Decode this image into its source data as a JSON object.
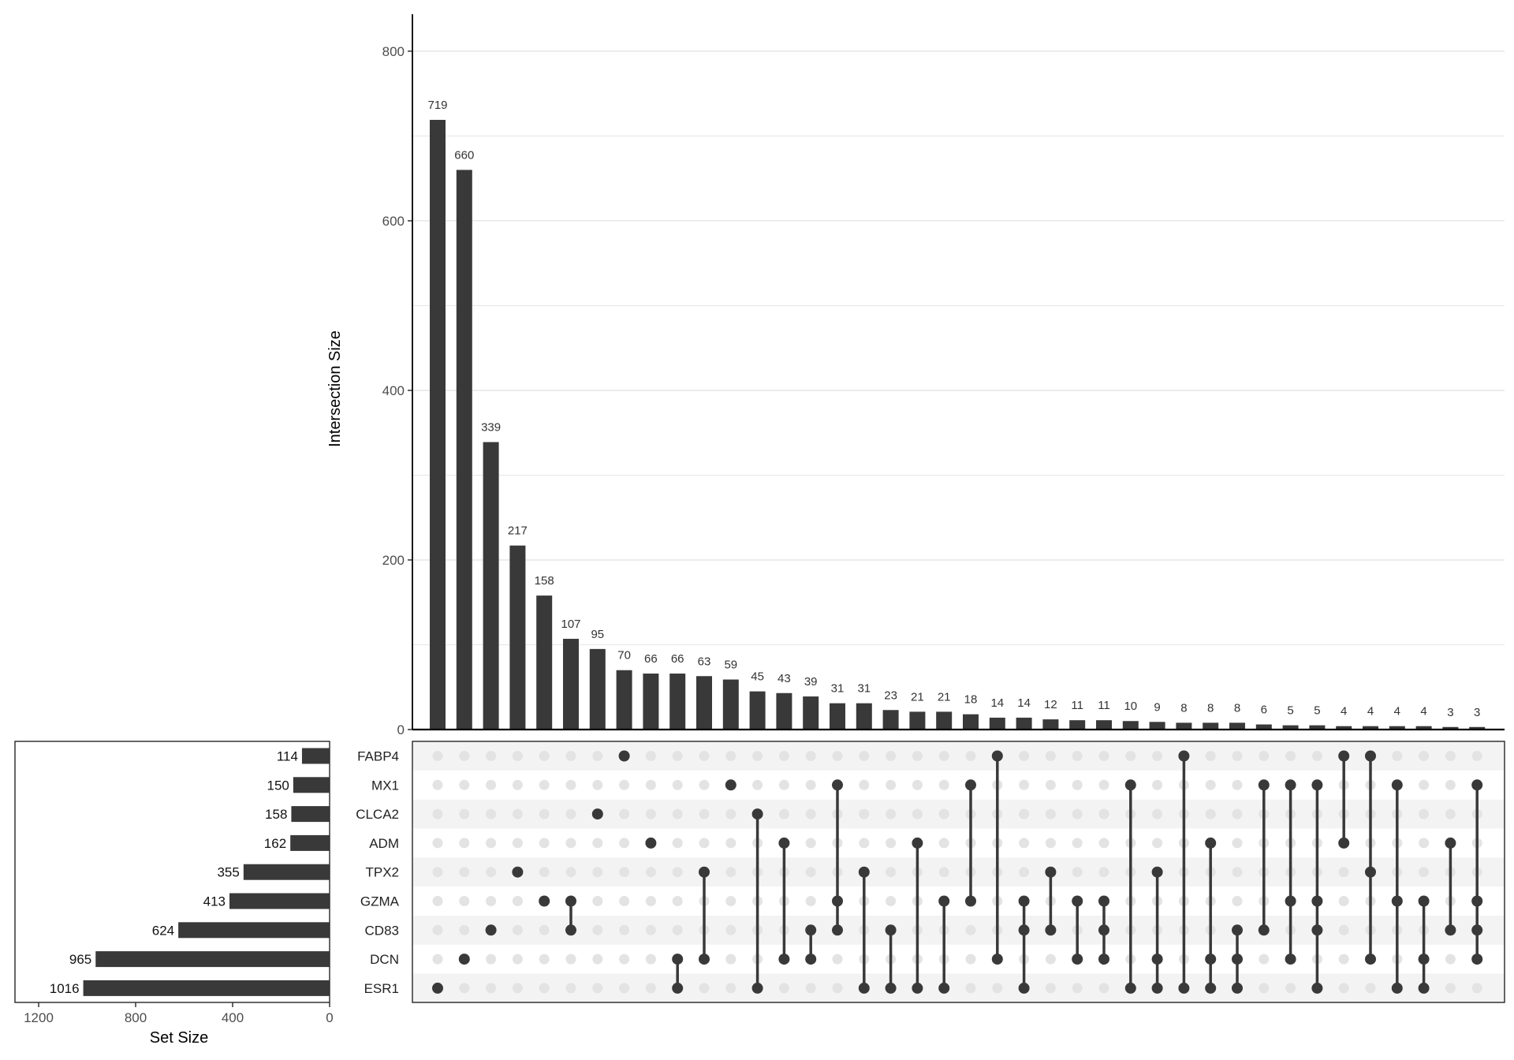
{
  "chart_data": {
    "type": "upset",
    "intersection_axis_label": "Intersection Size",
    "intersection_ylim": [
      0,
      820
    ],
    "intersection_yticks": [
      0,
      200,
      400,
      600,
      800
    ],
    "set_axis_label": "Set Size",
    "set_xlim": [
      1200,
      0
    ],
    "set_xticks": [
      1200,
      800,
      400,
      0
    ],
    "sets": [
      {
        "name": "FABP4",
        "size": 114
      },
      {
        "name": "MX1",
        "size": 150
      },
      {
        "name": "CLCA2",
        "size": 158
      },
      {
        "name": "ADM",
        "size": 162
      },
      {
        "name": "TPX2",
        "size": 355
      },
      {
        "name": "GZMA",
        "size": 413
      },
      {
        "name": "CD83",
        "size": 624
      },
      {
        "name": "DCN",
        "size": 965
      },
      {
        "name": "ESR1",
        "size": 1016
      }
    ],
    "intersections": [
      {
        "size": 719,
        "sets": [
          "ESR1"
        ]
      },
      {
        "size": 660,
        "sets": [
          "DCN"
        ]
      },
      {
        "size": 339,
        "sets": [
          "CD83"
        ]
      },
      {
        "size": 217,
        "sets": [
          "TPX2"
        ]
      },
      {
        "size": 158,
        "sets": [
          "GZMA"
        ]
      },
      {
        "size": 107,
        "sets": [
          "GZMA",
          "CD83"
        ]
      },
      {
        "size": 95,
        "sets": [
          "CLCA2"
        ]
      },
      {
        "size": 70,
        "sets": [
          "FABP4"
        ]
      },
      {
        "size": 66,
        "sets": [
          "ADM"
        ]
      },
      {
        "size": 66,
        "sets": [
          "DCN",
          "ESR1"
        ]
      },
      {
        "size": 63,
        "sets": [
          "TPX2",
          "DCN"
        ]
      },
      {
        "size": 59,
        "sets": [
          "MX1"
        ]
      },
      {
        "size": 45,
        "sets": [
          "CLCA2",
          "ESR1"
        ]
      },
      {
        "size": 43,
        "sets": [
          "ADM",
          "DCN"
        ]
      },
      {
        "size": 39,
        "sets": [
          "CD83",
          "DCN"
        ]
      },
      {
        "size": 31,
        "sets": [
          "MX1",
          "GZMA",
          "CD83"
        ]
      },
      {
        "size": 31,
        "sets": [
          "TPX2",
          "ESR1"
        ]
      },
      {
        "size": 23,
        "sets": [
          "CD83",
          "ESR1"
        ]
      },
      {
        "size": 21,
        "sets": [
          "ADM",
          "ESR1"
        ]
      },
      {
        "size": 21,
        "sets": [
          "GZMA",
          "ESR1"
        ]
      },
      {
        "size": 18,
        "sets": [
          "MX1",
          "GZMA"
        ]
      },
      {
        "size": 14,
        "sets": [
          "FABP4",
          "DCN"
        ]
      },
      {
        "size": 14,
        "sets": [
          "GZMA",
          "CD83",
          "ESR1"
        ]
      },
      {
        "size": 12,
        "sets": [
          "TPX2",
          "CD83"
        ]
      },
      {
        "size": 11,
        "sets": [
          "GZMA",
          "DCN"
        ]
      },
      {
        "size": 11,
        "sets": [
          "GZMA",
          "CD83",
          "DCN"
        ]
      },
      {
        "size": 10,
        "sets": [
          "MX1",
          "ESR1"
        ]
      },
      {
        "size": 9,
        "sets": [
          "TPX2",
          "DCN",
          "ESR1"
        ]
      },
      {
        "size": 8,
        "sets": [
          "FABP4",
          "ESR1"
        ]
      },
      {
        "size": 8,
        "sets": [
          "ADM",
          "DCN",
          "ESR1"
        ]
      },
      {
        "size": 8,
        "sets": [
          "CD83",
          "DCN",
          "ESR1"
        ]
      },
      {
        "size": 6,
        "sets": [
          "MX1",
          "CD83"
        ]
      },
      {
        "size": 5,
        "sets": [
          "MX1",
          "GZMA",
          "DCN"
        ]
      },
      {
        "size": 5,
        "sets": [
          "MX1",
          "GZMA",
          "CD83",
          "ESR1"
        ]
      },
      {
        "size": 4,
        "sets": [
          "FABP4",
          "ADM"
        ]
      },
      {
        "size": 4,
        "sets": [
          "FABP4",
          "TPX2",
          "DCN"
        ]
      },
      {
        "size": 4,
        "sets": [
          "MX1",
          "GZMA",
          "ESR1"
        ]
      },
      {
        "size": 4,
        "sets": [
          "GZMA",
          "DCN",
          "ESR1"
        ]
      },
      {
        "size": 3,
        "sets": [
          "ADM",
          "CD83"
        ]
      },
      {
        "size": 3,
        "sets": [
          "MX1",
          "GZMA",
          "CD83",
          "DCN"
        ]
      }
    ],
    "colors": {
      "bar": "#393939",
      "dot_on": "#393939",
      "dot_off": "#e3e3e3",
      "stripe": "#f3f3f3",
      "grid": "#e6e6e6",
      "axis_text": "#4d4d4d"
    }
  }
}
